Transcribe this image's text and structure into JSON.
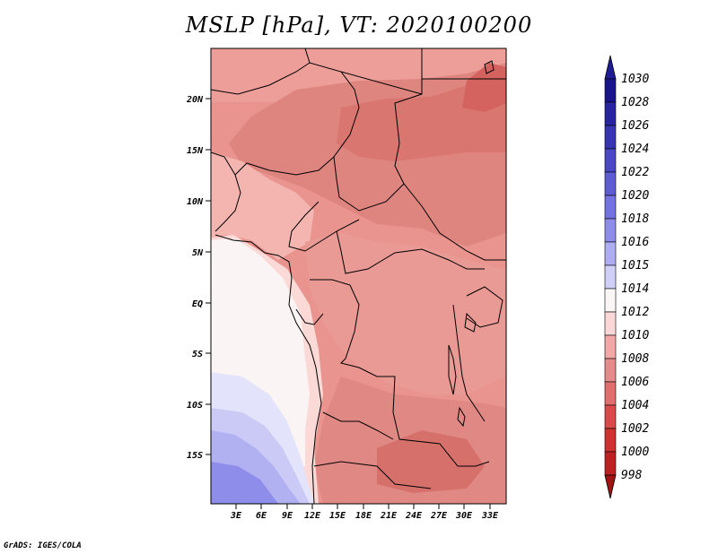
{
  "title": "MSLP [hPa], VT: 2020100200",
  "footer": "GrADS: IGES/COLA",
  "map": {
    "variable": "MSLP",
    "units": "hPa",
    "valid_time": "2020100200",
    "lon_range": [
      0,
      35
    ],
    "lat_range": [
      -20,
      24.5
    ],
    "lat_ticks": [
      {
        "value": 20,
        "label": "20N"
      },
      {
        "value": 15,
        "label": "15N"
      },
      {
        "value": 10,
        "label": "10N"
      },
      {
        "value": 5,
        "label": "5N"
      },
      {
        "value": 0,
        "label": "EQ"
      },
      {
        "value": -5,
        "label": "5S"
      },
      {
        "value": -10,
        "label": "10S"
      },
      {
        "value": -15,
        "label": "15S"
      }
    ],
    "lon_ticks": [
      {
        "value": 3,
        "label": "3E"
      },
      {
        "value": 6,
        "label": "6E"
      },
      {
        "value": 9,
        "label": "9E"
      },
      {
        "value": 12,
        "label": "12E"
      },
      {
        "value": 15,
        "label": "15E"
      },
      {
        "value": 18,
        "label": "18E"
      },
      {
        "value": 21,
        "label": "21E"
      },
      {
        "value": 24,
        "label": "24E"
      },
      {
        "value": 27,
        "label": "27E"
      },
      {
        "value": 30,
        "label": "30E"
      },
      {
        "value": 33,
        "label": "33E"
      }
    ]
  },
  "colorbar": {
    "levels": [
      {
        "label": "1030",
        "color": "#1a148c"
      },
      {
        "label": "1028",
        "color": "#2824a0"
      },
      {
        "label": "1026",
        "color": "#3835b2"
      },
      {
        "label": "1024",
        "color": "#4a48c4"
      },
      {
        "label": "1022",
        "color": "#5d5cd2"
      },
      {
        "label": "1020",
        "color": "#7472e0"
      },
      {
        "label": "1018",
        "color": "#8e8ce9"
      },
      {
        "label": "1016",
        "color": "#aeadf1"
      },
      {
        "label": "1015",
        "color": "#cfcff7"
      },
      {
        "label": "1014",
        "color": "#fbf6f6"
      },
      {
        "label": "1012",
        "color": "#fad8d8"
      },
      {
        "label": "1010",
        "color": "#f3a7a7"
      },
      {
        "label": "1008",
        "color": "#e58b8b"
      },
      {
        "label": "1006",
        "color": "#e16e6e"
      },
      {
        "label": "1004",
        "color": "#db4a4a"
      },
      {
        "label": "1002",
        "color": "#cf3030"
      },
      {
        "label": "1000",
        "color": "#bc2222"
      },
      {
        "label": "998",
        "color": "#a51616"
      }
    ],
    "top_color": "#201c95",
    "bottom_color": "#a11414"
  }
}
